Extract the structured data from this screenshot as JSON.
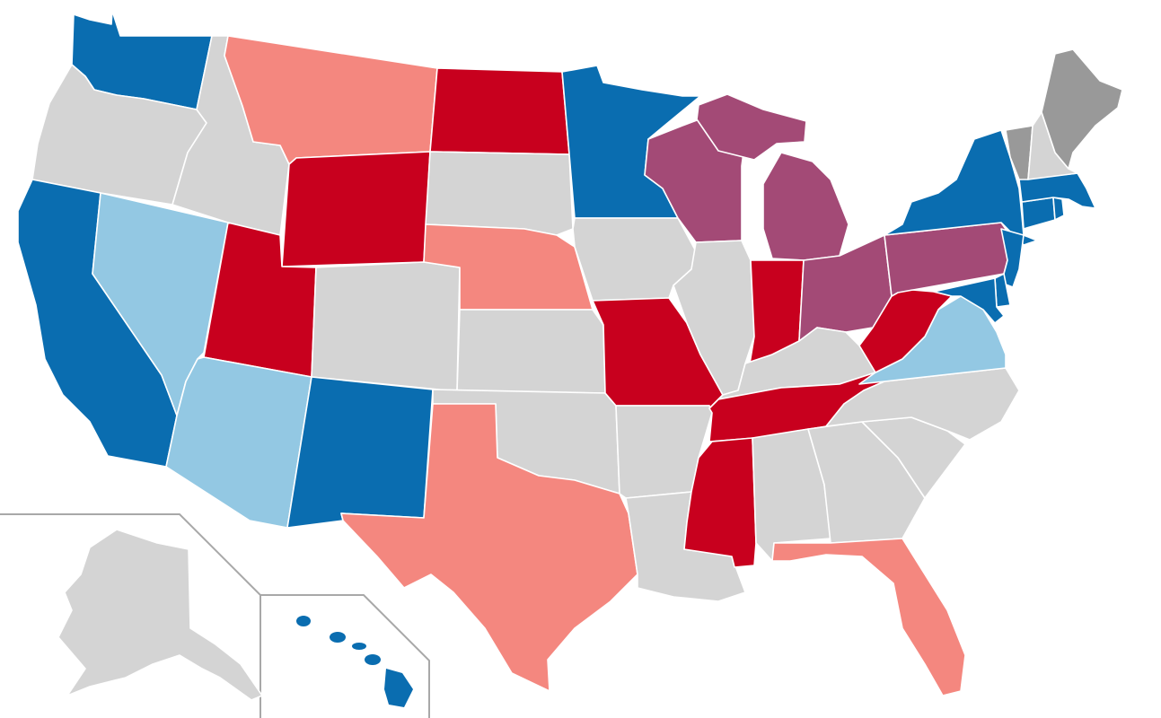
{
  "colors": {
    "background": "#ffffff",
    "strong_dem": "#0a6db0",
    "lean_dem": "#93c8e3",
    "strong_rep": "#c8001e",
    "lean_rep": "#f4877f",
    "swing": "#a34a76",
    "no_data": "#d4d4d4",
    "other": "#999999",
    "border": "#ffffff",
    "inset_frame": "#a8a8a8"
  },
  "states": [
    {
      "id": "WA",
      "category": "strong_dem"
    },
    {
      "id": "OR",
      "category": "no_data"
    },
    {
      "id": "CA",
      "category": "strong_dem"
    },
    {
      "id": "NV",
      "category": "lean_dem"
    },
    {
      "id": "ID",
      "category": "no_data"
    },
    {
      "id": "MT",
      "category": "lean_rep"
    },
    {
      "id": "WY",
      "category": "strong_rep"
    },
    {
      "id": "UT",
      "category": "strong_rep"
    },
    {
      "id": "AZ",
      "category": "lean_dem"
    },
    {
      "id": "CO",
      "category": "no_data"
    },
    {
      "id": "NM",
      "category": "strong_dem"
    },
    {
      "id": "ND",
      "category": "strong_rep"
    },
    {
      "id": "SD",
      "category": "no_data"
    },
    {
      "id": "NE",
      "category": "lean_rep"
    },
    {
      "id": "KS",
      "category": "no_data"
    },
    {
      "id": "OK",
      "category": "no_data"
    },
    {
      "id": "TX",
      "category": "lean_rep"
    },
    {
      "id": "MN",
      "category": "strong_dem"
    },
    {
      "id": "IA",
      "category": "no_data"
    },
    {
      "id": "MO",
      "category": "strong_rep"
    },
    {
      "id": "AR",
      "category": "no_data"
    },
    {
      "id": "LA",
      "category": "no_data"
    },
    {
      "id": "WI",
      "category": "swing"
    },
    {
      "id": "IL",
      "category": "no_data"
    },
    {
      "id": "MI",
      "category": "swing"
    },
    {
      "id": "IN",
      "category": "strong_rep"
    },
    {
      "id": "OH",
      "category": "swing"
    },
    {
      "id": "KY",
      "category": "no_data"
    },
    {
      "id": "TN",
      "category": "strong_rep"
    },
    {
      "id": "MS",
      "category": "strong_rep"
    },
    {
      "id": "AL",
      "category": "no_data"
    },
    {
      "id": "GA",
      "category": "no_data"
    },
    {
      "id": "FL",
      "category": "lean_rep"
    },
    {
      "id": "SC",
      "category": "no_data"
    },
    {
      "id": "NC",
      "category": "no_data"
    },
    {
      "id": "VA",
      "category": "lean_dem"
    },
    {
      "id": "WV",
      "category": "strong_rep"
    },
    {
      "id": "PA",
      "category": "swing"
    },
    {
      "id": "NY",
      "category": "strong_dem"
    },
    {
      "id": "NJ",
      "category": "strong_dem"
    },
    {
      "id": "DE",
      "category": "strong_dem"
    },
    {
      "id": "MD",
      "category": "strong_dem"
    },
    {
      "id": "CT",
      "category": "strong_dem"
    },
    {
      "id": "RI",
      "category": "strong_dem"
    },
    {
      "id": "MA",
      "category": "strong_dem"
    },
    {
      "id": "VT",
      "category": "other"
    },
    {
      "id": "NH",
      "category": "no_data"
    },
    {
      "id": "ME",
      "category": "other"
    },
    {
      "id": "AK",
      "category": "no_data"
    },
    {
      "id": "HI",
      "category": "strong_dem"
    }
  ]
}
